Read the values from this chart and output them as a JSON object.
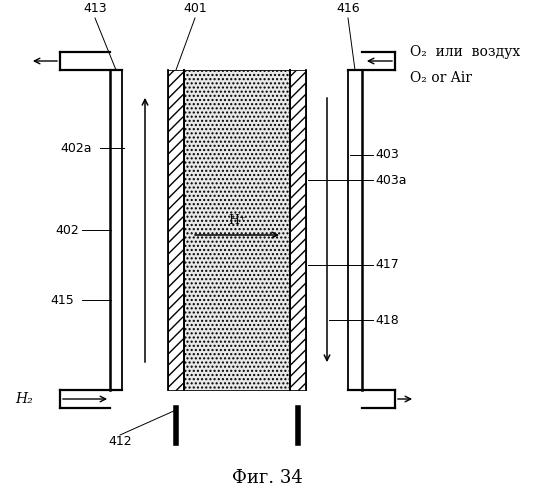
{
  "fig_width": 5.35,
  "fig_height": 4.99,
  "dpi": 100,
  "bg_color": "#ffffff",
  "title_text": "Фиг. 34",
  "label_top_russian": "O₂  или  воздух",
  "label_top_english": "O₂ or Air",
  "label_H2": "H₂",
  "label_Hp": "H⁺"
}
